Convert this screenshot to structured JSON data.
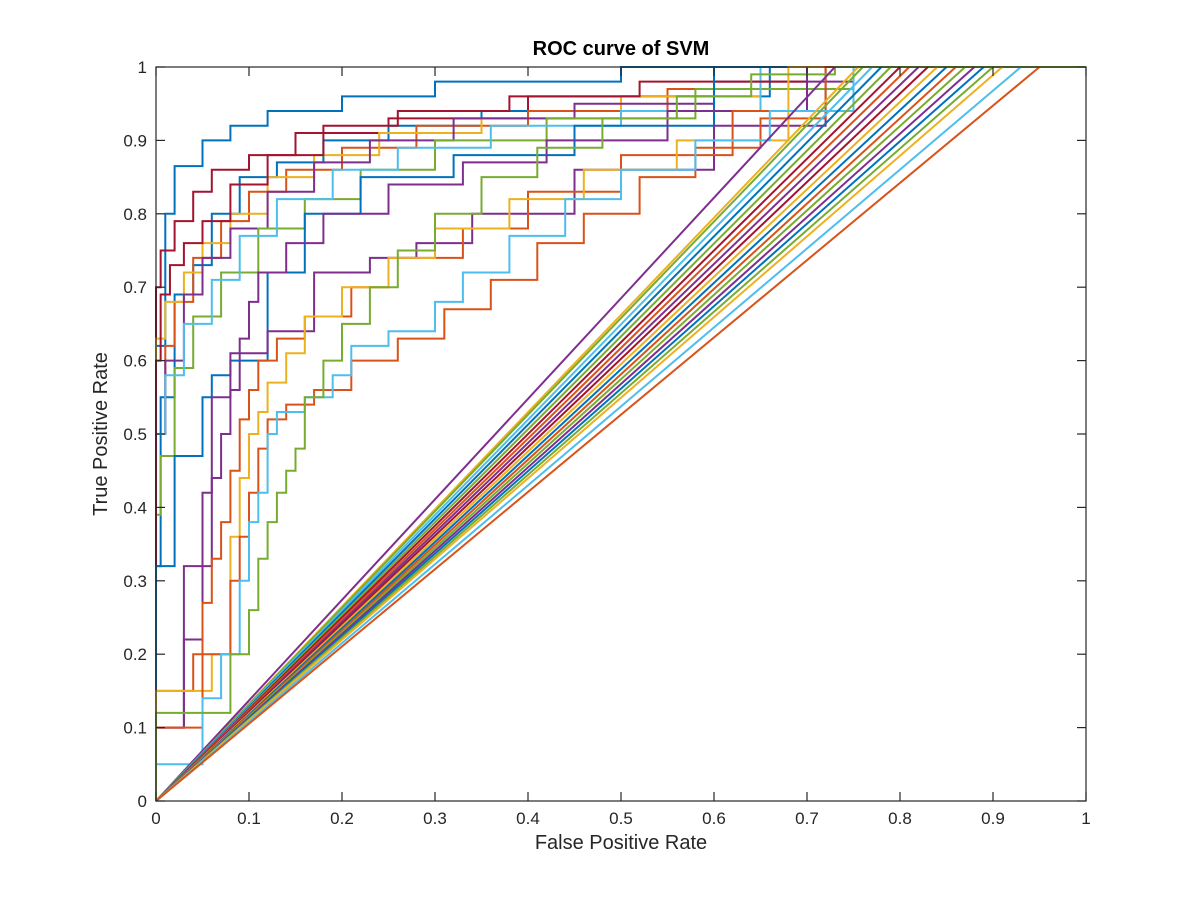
{
  "chart_data": {
    "type": "line",
    "title": "ROC curve of SVM",
    "xlabel": "False Positive Rate",
    "ylabel": "True Positive Rate",
    "xlim": [
      0,
      1
    ],
    "ylim": [
      0,
      1
    ],
    "xticks": [
      "0",
      "0.1",
      "0.2",
      "0.3",
      "0.4",
      "0.5",
      "0.6",
      "0.7",
      "0.8",
      "0.9",
      "1"
    ],
    "yticks": [
      "0",
      "0.1",
      "0.2",
      "0.3",
      "0.4",
      "0.5",
      "0.6",
      "0.7",
      "0.8",
      "0.9",
      "1"
    ],
    "grid": false,
    "legend": "none",
    "colors": [
      "#0072BD",
      "#D95319",
      "#EDB120",
      "#7E2F8E",
      "#77AC30",
      "#4DBEEE",
      "#A2142F"
    ],
    "series": [
      {
        "color": "#0072BD",
        "x": [
          0,
          0,
          0.01,
          0.02,
          0.03,
          0.05,
          0.08,
          0.12,
          0.2,
          0.3,
          0.5,
          0.7,
          1
        ],
        "y": [
          0,
          0.1,
          0.62,
          0.8,
          0.865,
          0.865,
          0.9,
          0.92,
          0.94,
          0.96,
          0.98,
          1,
          1
        ]
      },
      {
        "color": "#A2142F",
        "x": [
          0,
          0,
          0.005,
          0.02,
          0.04,
          0.06,
          0.1,
          0.15,
          0.25,
          0.4,
          0.6,
          0.8,
          1
        ],
        "y": [
          0,
          0.55,
          0.7,
          0.75,
          0.79,
          0.83,
          0.86,
          0.88,
          0.91,
          0.93,
          0.96,
          1,
          1
        ]
      },
      {
        "color": "#0072BD",
        "x": [
          0,
          0.005,
          0.02,
          0.04,
          0.06,
          0.09,
          0.13,
          0.18,
          0.25,
          0.35,
          0.5,
          0.66,
          0.9,
          1
        ],
        "y": [
          0,
          0.32,
          0.55,
          0.69,
          0.73,
          0.8,
          0.85,
          0.87,
          0.9,
          0.92,
          0.94,
          0.96,
          1,
          1
        ]
      },
      {
        "color": "#D95319",
        "x": [
          0,
          0.01,
          0.02,
          0.04,
          0.07,
          0.1,
          0.14,
          0.2,
          0.28,
          0.4,
          0.55,
          0.7,
          0.75,
          1
        ],
        "y": [
          0,
          0.5,
          0.62,
          0.68,
          0.74,
          0.79,
          0.83,
          0.86,
          0.89,
          0.92,
          0.94,
          0.97,
          1,
          1
        ]
      },
      {
        "color": "#EDB120",
        "x": [
          0,
          0,
          0.01,
          0.03,
          0.05,
          0.08,
          0.12,
          0.17,
          0.24,
          0.35,
          0.5,
          0.65,
          0.7,
          1
        ],
        "y": [
          0,
          0.4,
          0.63,
          0.68,
          0.72,
          0.76,
          0.8,
          0.85,
          0.88,
          0.91,
          0.93,
          0.96,
          1,
          1
        ]
      },
      {
        "color": "#7E2F8E",
        "x": [
          0,
          0.01,
          0.03,
          0.05,
          0.08,
          0.12,
          0.17,
          0.23,
          0.32,
          0.45,
          0.6,
          0.75,
          0.86,
          1
        ],
        "y": [
          0,
          0.5,
          0.6,
          0.69,
          0.74,
          0.78,
          0.83,
          0.87,
          0.9,
          0.93,
          0.95,
          0.98,
          1,
          1
        ]
      },
      {
        "color": "#77AC30",
        "x": [
          0,
          0.005,
          0.02,
          0.04,
          0.07,
          0.11,
          0.16,
          0.22,
          0.3,
          0.42,
          0.58,
          0.75,
          0.8,
          1
        ],
        "y": [
          0,
          0.39,
          0.47,
          0.59,
          0.66,
          0.72,
          0.78,
          0.82,
          0.86,
          0.9,
          0.93,
          0.97,
          1,
          1
        ]
      },
      {
        "color": "#4DBEEE",
        "x": [
          0,
          0.01,
          0.03,
          0.06,
          0.09,
          0.13,
          0.19,
          0.26,
          0.36,
          0.5,
          0.65,
          0.78,
          1
        ],
        "y": [
          0,
          0.5,
          0.58,
          0.65,
          0.71,
          0.77,
          0.82,
          0.86,
          0.89,
          0.92,
          0.94,
          1,
          1
        ]
      },
      {
        "color": "#A2142F",
        "x": [
          0,
          0.005,
          0.015,
          0.03,
          0.05,
          0.08,
          0.12,
          0.18,
          0.26,
          0.38,
          0.52,
          0.7,
          0.76,
          1
        ],
        "y": [
          0,
          0.6,
          0.69,
          0.73,
          0.76,
          0.79,
          0.84,
          0.88,
          0.92,
          0.94,
          0.96,
          0.98,
          1,
          1
        ]
      },
      {
        "color": "#0072BD",
        "x": [
          0,
          0.02,
          0.05,
          0.06,
          0.08,
          0.1,
          0.12,
          0.16,
          0.22,
          0.32,
          0.45,
          0.6,
          0.8,
          1
        ],
        "y": [
          0,
          0.32,
          0.47,
          0.55,
          0.58,
          0.6,
          0.6,
          0.72,
          0.8,
          0.85,
          0.88,
          0.92,
          1,
          1
        ]
      },
      {
        "color": "#7E2F8E",
        "x": [
          0,
          0.03,
          0.05,
          0.06,
          0.08,
          0.1,
          0.12,
          0.17,
          0.23,
          0.28,
          0.34,
          0.45,
          0.6,
          0.72,
          1
        ],
        "y": [
          0,
          0.1,
          0.32,
          0.42,
          0.55,
          0.61,
          0.61,
          0.64,
          0.72,
          0.74,
          0.76,
          0.8,
          0.86,
          0.92,
          1
        ]
      },
      {
        "color": "#7E2F8E",
        "x": [
          0,
          0.03,
          0.05,
          0.06,
          0.07,
          0.08,
          0.09,
          0.1,
          0.11,
          0.14,
          0.18,
          0.25,
          0.33,
          0.42,
          0.55,
          0.7,
          0.85,
          1
        ],
        "y": [
          0,
          0.1,
          0.22,
          0.32,
          0.44,
          0.5,
          0.56,
          0.63,
          0.68,
          0.72,
          0.76,
          0.8,
          0.84,
          0.87,
          0.9,
          0.94,
          1,
          1
        ]
      },
      {
        "color": "#D95319",
        "x": [
          0,
          0.04,
          0.05,
          0.06,
          0.07,
          0.08,
          0.09,
          0.1,
          0.11,
          0.13,
          0.16,
          0.21,
          0.25,
          0.33,
          0.4,
          0.5,
          0.62,
          0.75,
          1
        ],
        "y": [
          0,
          0.15,
          0.2,
          0.27,
          0.33,
          0.38,
          0.45,
          0.52,
          0.56,
          0.6,
          0.63,
          0.66,
          0.7,
          0.74,
          0.78,
          0.83,
          0.88,
          0.94,
          1
        ]
      },
      {
        "color": "#EDB120",
        "x": [
          0,
          0.06,
          0.08,
          0.09,
          0.1,
          0.11,
          0.12,
          0.14,
          0.16,
          0.2,
          0.25,
          0.3,
          0.38,
          0.46,
          0.56,
          0.68,
          0.8,
          1
        ],
        "y": [
          0,
          0.15,
          0.2,
          0.36,
          0.44,
          0.5,
          0.53,
          0.57,
          0.61,
          0.66,
          0.7,
          0.74,
          0.78,
          0.82,
          0.86,
          0.9,
          1,
          1
        ]
      },
      {
        "color": "#D95319",
        "x": [
          0,
          0.05,
          0.08,
          0.09,
          0.1,
          0.11,
          0.12,
          0.14,
          0.17,
          0.21,
          0.26,
          0.31,
          0.36,
          0.41,
          0.46,
          0.52,
          0.58,
          0.65,
          0.72,
          0.85,
          1
        ],
        "y": [
          0,
          0.1,
          0.2,
          0.3,
          0.36,
          0.42,
          0.48,
          0.52,
          0.54,
          0.56,
          0.6,
          0.63,
          0.67,
          0.71,
          0.76,
          0.8,
          0.85,
          0.89,
          0.93,
          1,
          1
        ]
      },
      {
        "color": "#4DBEEE",
        "x": [
          0,
          0.05,
          0.07,
          0.09,
          0.1,
          0.11,
          0.12,
          0.13,
          0.16,
          0.19,
          0.21,
          0.25,
          0.3,
          0.33,
          0.38,
          0.44,
          0.5,
          0.58,
          0.66,
          0.75,
          0.85,
          1
        ],
        "y": [
          0,
          0.05,
          0.14,
          0.2,
          0.3,
          0.38,
          0.42,
          0.5,
          0.53,
          0.55,
          0.58,
          0.62,
          0.64,
          0.68,
          0.72,
          0.77,
          0.82,
          0.86,
          0.9,
          0.94,
          1,
          1
        ]
      },
      {
        "color": "#77AC30",
        "x": [
          0,
          0.08,
          0.1,
          0.11,
          0.12,
          0.13,
          0.14,
          0.15,
          0.16,
          0.18,
          0.2,
          0.23,
          0.26,
          0.3,
          0.35,
          0.41,
          0.48,
          0.56,
          0.64,
          0.73,
          0.82,
          1
        ],
        "y": [
          0,
          0.12,
          0.2,
          0.26,
          0.33,
          0.38,
          0.42,
          0.45,
          0.48,
          0.55,
          0.6,
          0.65,
          0.7,
          0.75,
          0.8,
          0.85,
          0.89,
          0.93,
          0.96,
          0.99,
          1,
          1
        ]
      },
      {
        "color": "#EDB120",
        "x": [
          0,
          0.755
        ],
        "y": [
          0,
          1
        ]
      },
      {
        "color": "#7E2F8E",
        "x": [
          0,
          0.73
        ],
        "y": [
          0,
          1
        ]
      },
      {
        "color": "#77AC30",
        "x": [
          0,
          0.76
        ],
        "y": [
          0,
          1
        ]
      },
      {
        "color": "#4DBEEE",
        "x": [
          0,
          0.77
        ],
        "y": [
          0,
          1
        ]
      },
      {
        "color": "#0072BD",
        "x": [
          0,
          0.78
        ],
        "y": [
          0,
          1
        ]
      },
      {
        "color": "#77AC30",
        "x": [
          0,
          0.79
        ],
        "y": [
          0,
          1
        ]
      },
      {
        "color": "#A2142F",
        "x": [
          0,
          0.8
        ],
        "y": [
          0,
          1
        ]
      },
      {
        "color": "#D95319",
        "x": [
          0,
          0.81
        ],
        "y": [
          0,
          1
        ]
      },
      {
        "color": "#7E2F8E",
        "x": [
          0,
          0.82
        ],
        "y": [
          0,
          1
        ]
      },
      {
        "color": "#A2142F",
        "x": [
          0,
          0.83
        ],
        "y": [
          0,
          1
        ]
      },
      {
        "color": "#EDB120",
        "x": [
          0,
          0.84
        ],
        "y": [
          0,
          1
        ]
      },
      {
        "color": "#0072BD",
        "x": [
          0,
          0.85
        ],
        "y": [
          0,
          1
        ]
      },
      {
        "color": "#D95319",
        "x": [
          0,
          0.86
        ],
        "y": [
          0,
          1
        ]
      },
      {
        "color": "#77AC30",
        "x": [
          0,
          0.87
        ],
        "y": [
          0,
          1
        ]
      },
      {
        "color": "#7E2F8E",
        "x": [
          0,
          0.88
        ],
        "y": [
          0,
          1
        ]
      },
      {
        "color": "#0072BD",
        "x": [
          0,
          0.89
        ],
        "y": [
          0,
          1
        ]
      },
      {
        "color": "#77AC30",
        "x": [
          0,
          0.9
        ],
        "y": [
          0,
          1
        ]
      },
      {
        "color": "#EDB120",
        "x": [
          0,
          0.91
        ],
        "y": [
          0,
          1
        ]
      },
      {
        "color": "#4DBEEE",
        "x": [
          0,
          0.93
        ],
        "y": [
          0,
          1
        ]
      },
      {
        "color": "#D95319",
        "x": [
          0,
          0.95
        ],
        "y": [
          0,
          1
        ]
      }
    ]
  }
}
